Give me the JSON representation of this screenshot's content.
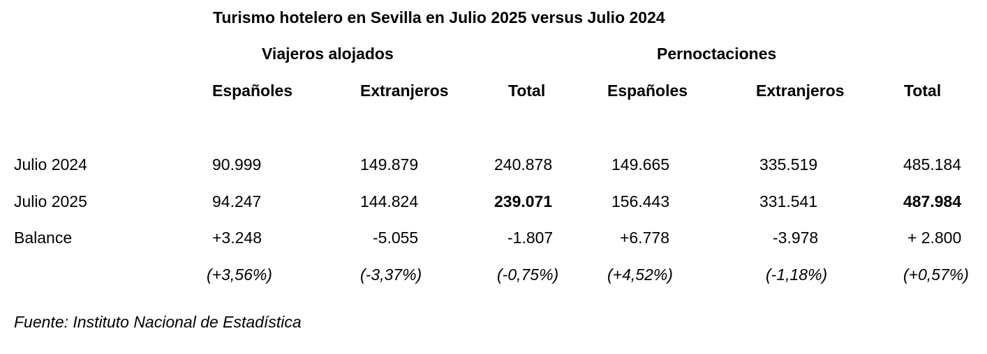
{
  "title": "Turismo hotelero en Sevilla en Julio 2025 versus Julio 2024",
  "groups": {
    "viajeros": "Viajeros alojados",
    "pernoctaciones": "Pernoctaciones"
  },
  "columns": [
    "Españoles",
    "Extranjeros",
    "Total",
    "Españoles",
    "Extranjeros",
    "Total"
  ],
  "rows": [
    {
      "label": "Julio 2024",
      "values": [
        "90.999",
        "149.879",
        "240.878",
        "149.665",
        "335.519",
        "485.184"
      ]
    },
    {
      "label": "Julio 2025",
      "values": [
        "94.247",
        "144.824",
        "239.071",
        "156.443",
        "331.541",
        "487.984"
      ]
    },
    {
      "label": "Balance",
      "values": [
        "+3.248",
        "-5.055",
        "-1.807",
        "+6.778",
        "-3.978",
        "+ 2.800"
      ]
    },
    {
      "label": "",
      "values": [
        "(+3,56%)",
        "(-3,37%)",
        "(-0,75%)",
        "(+4,52%)",
        "(-1,18%)",
        "(+0,57%)"
      ]
    }
  ],
  "source": "Fuente: Instituto Nacional de Estadística"
}
